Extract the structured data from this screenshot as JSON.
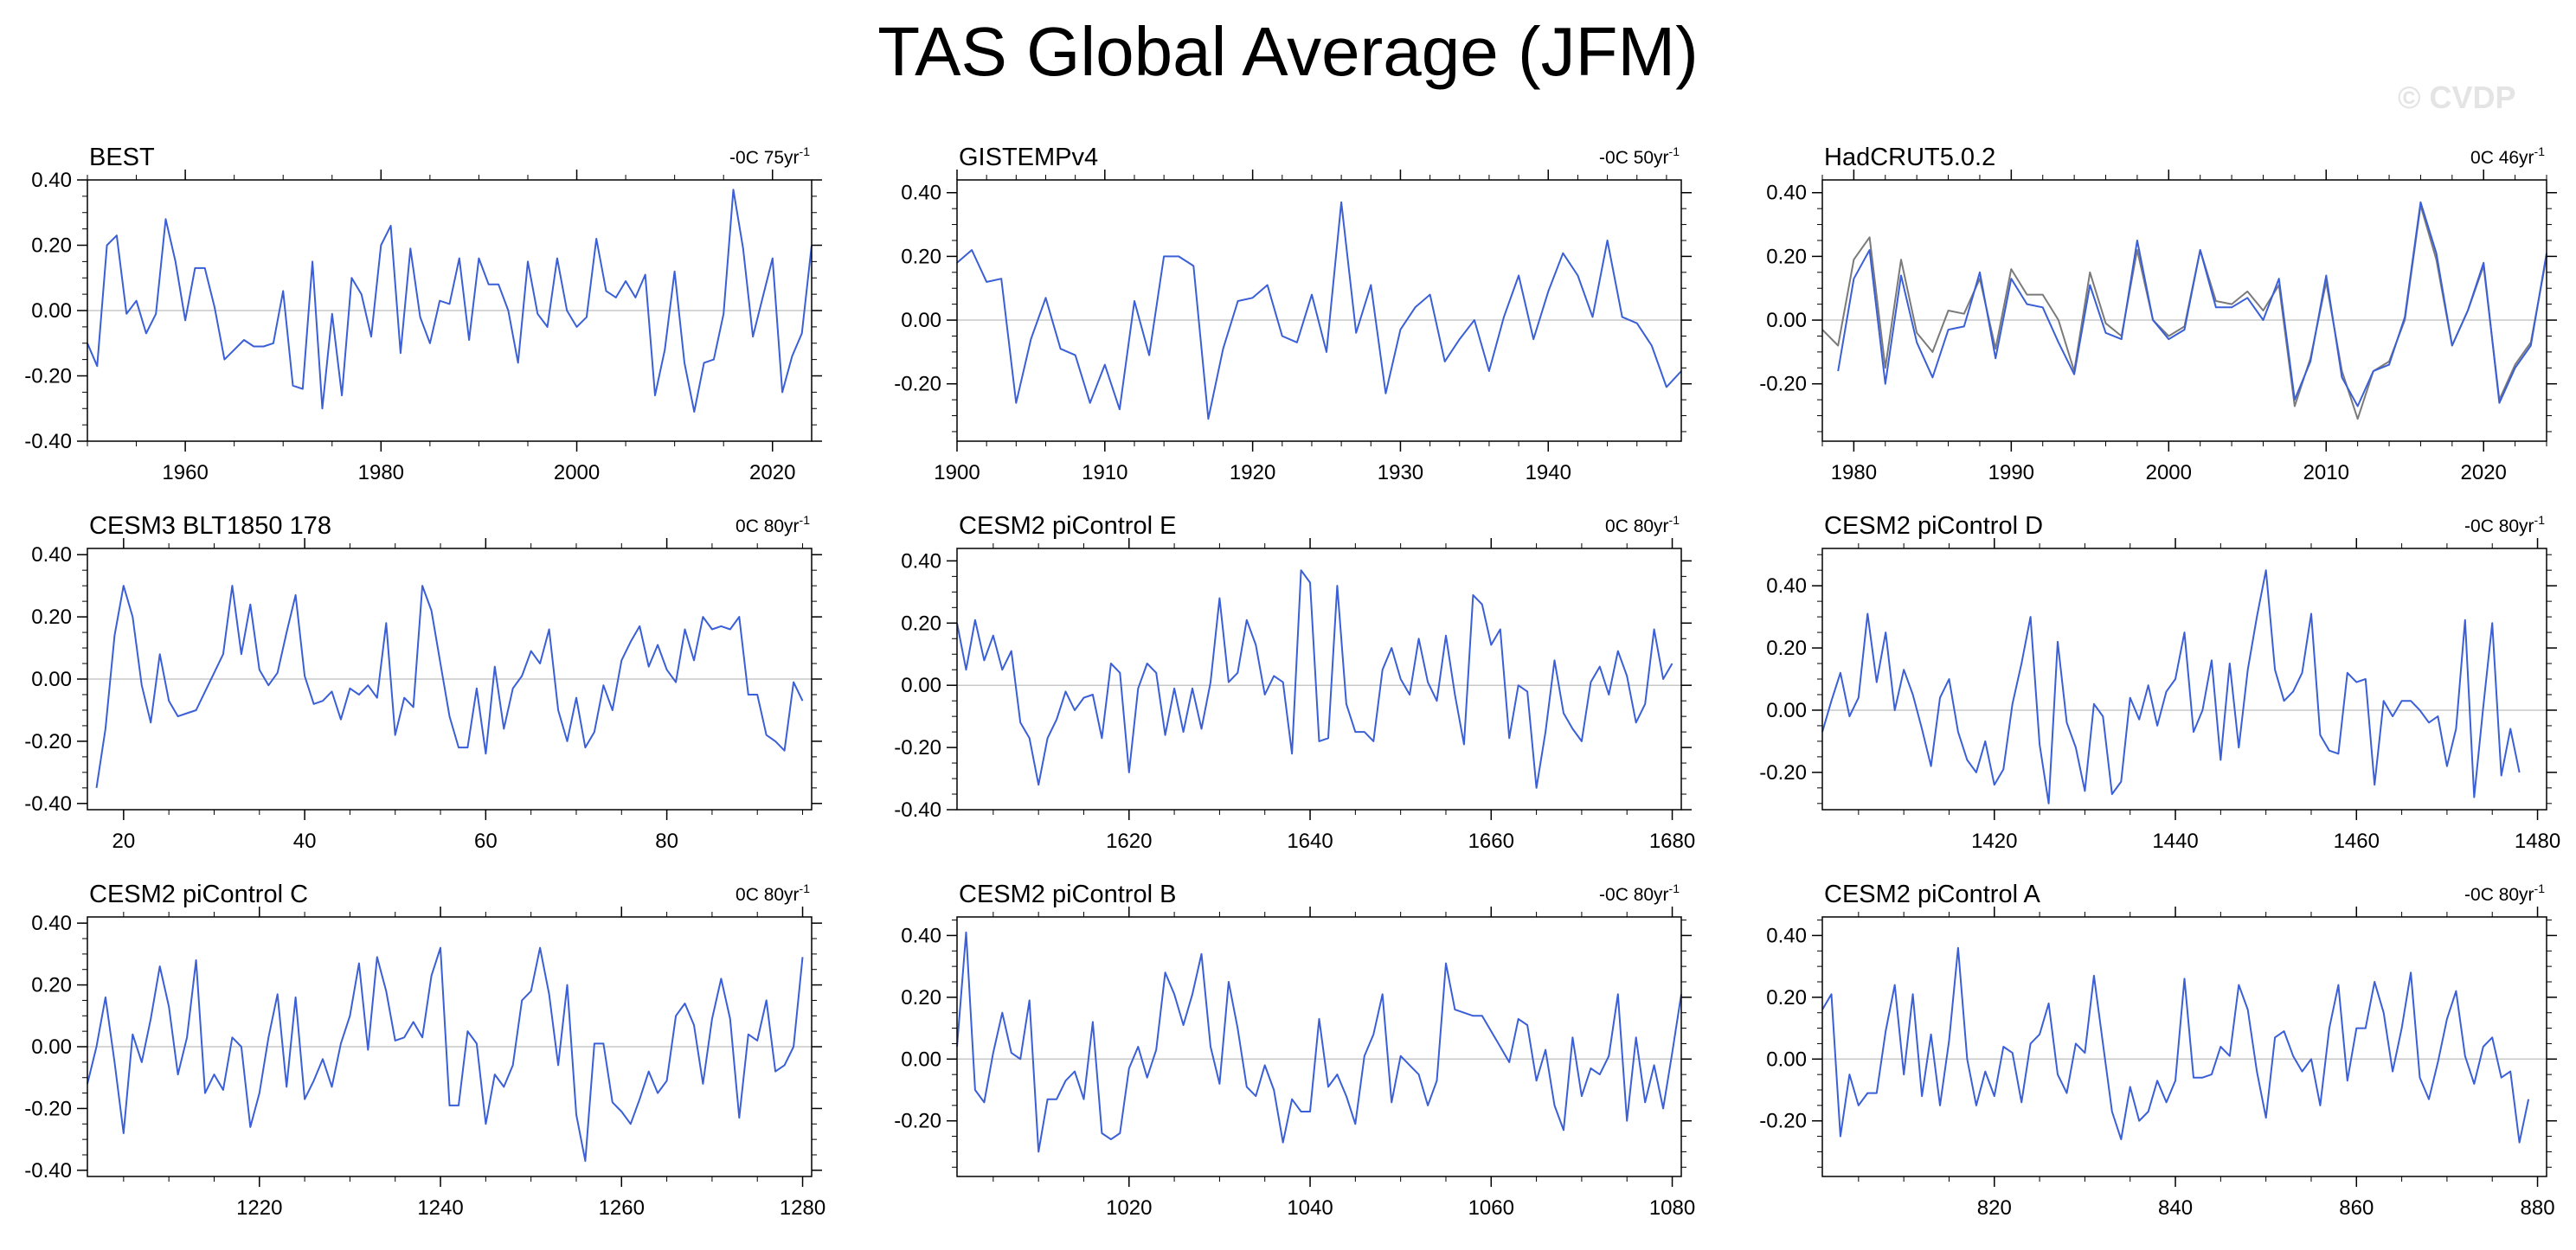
{
  "title": "TAS Global Average (JFM)",
  "watermark": "© CVDP",
  "colors": {
    "primary": "#3a5fd6",
    "secondary": "#7a7a7a",
    "zero_line": "#c8c8c8"
  },
  "chart_data": [
    {
      "type": "line",
      "title": "BEST",
      "trend_value": "-0C 75yr",
      "trend_exp": "-1",
      "xlim": [
        1950,
        2024
      ],
      "xticks": [
        1960,
        1980,
        2000,
        2020
      ],
      "ylim": [
        -0.4,
        0.4
      ],
      "yticks": [
        "0.40",
        "0.20",
        "0.00",
        "-0.20",
        "-0.40"
      ],
      "series": [
        {
          "x_start": 1950,
          "values": [
            -0.1,
            -0.17,
            0.2,
            0.23,
            -0.01,
            0.03,
            -0.07,
            -0.01,
            0.28,
            0.15,
            -0.03,
            0.13,
            0.13,
            0.01,
            -0.15,
            -0.12,
            -0.09,
            -0.11,
            -0.11,
            -0.1,
            0.06,
            -0.23,
            -0.24,
            0.15,
            -0.3,
            -0.01,
            -0.26,
            0.1,
            0.05,
            -0.08,
            0.2,
            0.26,
            -0.13,
            0.19,
            -0.02,
            -0.1,
            0.03,
            0.02,
            0.16,
            -0.09,
            0.16,
            0.08,
            0.08,
            0.0,
            -0.16,
            0.15,
            -0.01,
            -0.05,
            0.16,
            0.0,
            -0.05,
            -0.02,
            0.22,
            0.06,
            0.04,
            0.09,
            0.04,
            0.11,
            -0.26,
            -0.12,
            0.12,
            -0.16,
            -0.31,
            -0.16,
            -0.15,
            -0.01,
            0.37,
            0.19,
            -0.08,
            0.04,
            0.16,
            -0.25,
            -0.14,
            -0.07,
            0.2
          ]
        }
      ]
    },
    {
      "type": "line",
      "title": "GISTEMPv4",
      "trend_value": "-0C 50yr",
      "trend_exp": "-1",
      "xlim": [
        1900,
        1949
      ],
      "xticks": [
        1900,
        1910,
        1920,
        1930,
        1940
      ],
      "ylim": [
        -0.38,
        0.44
      ],
      "yticks": [
        "0.40",
        "0.20",
        "0.00",
        "-0.20"
      ],
      "series": [
        {
          "x_start": 1900,
          "values": [
            0.18,
            0.22,
            0.12,
            0.13,
            -0.26,
            -0.06,
            0.07,
            -0.09,
            -0.11,
            -0.26,
            -0.14,
            -0.28,
            0.06,
            -0.11,
            0.2,
            0.2,
            0.17,
            -0.31,
            -0.09,
            0.06,
            0.07,
            0.11,
            -0.05,
            -0.07,
            0.08,
            -0.1,
            0.37,
            -0.04,
            0.11,
            -0.23,
            -0.03,
            0.04,
            0.08,
            -0.13,
            -0.06,
            0.0,
            -0.16,
            0.01,
            0.14,
            -0.06,
            0.09,
            0.21,
            0.14,
            0.01,
            0.25,
            0.01,
            -0.01,
            -0.08,
            -0.21,
            -0.16
          ]
        }
      ]
    },
    {
      "type": "line",
      "title": "HadCRUT5.0.2",
      "trend_value": "0C 46yr",
      "trend_exp": "-1",
      "xlim": [
        1978,
        2024
      ],
      "xticks": [
        1980,
        1990,
        2000,
        2010,
        2020
      ],
      "ylim": [
        -0.38,
        0.44
      ],
      "yticks": [
        "0.40",
        "0.20",
        "0.00",
        "-0.20"
      ],
      "series": [
        {
          "name": "",
          "x_start": 1979,
          "values": [
            -0.16,
            0.13,
            0.22,
            -0.2,
            0.14,
            -0.07,
            -0.18,
            -0.03,
            -0.02,
            0.15,
            -0.12,
            0.13,
            0.05,
            0.04,
            -0.07,
            -0.17,
            0.11,
            -0.04,
            -0.06,
            0.25,
            0.0,
            -0.06,
            -0.03,
            0.22,
            0.04,
            0.04,
            0.07,
            0.0,
            0.13,
            -0.25,
            -0.13,
            0.14,
            -0.18,
            -0.27,
            -0.16,
            -0.14,
            0.01,
            0.37,
            0.21,
            -0.08,
            0.03,
            0.18,
            -0.26,
            -0.15,
            -0.08,
            0.21
          ]
        },
        {
          "name": "",
          "x_start": 1978,
          "values": [
            -0.03,
            -0.08,
            0.19,
            0.26,
            -0.15,
            0.19,
            -0.04,
            -0.1,
            0.03,
            0.02,
            0.13,
            -0.09,
            0.16,
            0.08,
            0.08,
            0.0,
            -0.16,
            0.15,
            -0.01,
            -0.05,
            0.22,
            0.0,
            -0.05,
            -0.02,
            0.22,
            0.06,
            0.05,
            0.09,
            0.03,
            0.11,
            -0.27,
            -0.12,
            0.12,
            -0.16,
            -0.31,
            -0.16,
            -0.13,
            0.0,
            0.36,
            0.19,
            -0.08,
            0.03,
            0.17,
            -0.25,
            -0.14,
            -0.07,
            0.2
          ]
        }
      ]
    },
    {
      "type": "line",
      "title": "CESM3 BLT1850 178",
      "trend_value": "0C 80yr",
      "trend_exp": "-1",
      "xlim": [
        16,
        96
      ],
      "xticks": [
        20,
        40,
        60,
        80
      ],
      "ylim": [
        -0.42,
        0.42
      ],
      "yticks": [
        "0.40",
        "0.20",
        "0.00",
        "-0.20",
        "-0.40"
      ],
      "series": [
        {
          "x_start": 17,
          "values": [
            -0.35,
            -0.16,
            0.14,
            0.3,
            0.2,
            -0.02,
            -0.14,
            0.08,
            -0.07,
            -0.12,
            -0.11,
            -0.1,
            -0.04,
            0.02,
            0.08,
            0.3,
            0.08,
            0.24,
            0.03,
            -0.02,
            0.02,
            0.15,
            0.27,
            0.01,
            -0.08,
            -0.07,
            -0.04,
            -0.13,
            -0.03,
            -0.05,
            -0.02,
            -0.06,
            0.18,
            -0.18,
            -0.06,
            -0.09,
            0.3,
            0.22,
            0.05,
            -0.12,
            -0.22,
            -0.22,
            -0.03,
            -0.24,
            0.04,
            -0.16,
            -0.03,
            0.01,
            0.09,
            0.05,
            0.16,
            -0.1,
            -0.2,
            -0.06,
            -0.22,
            -0.17,
            -0.02,
            -0.1,
            0.06,
            0.12,
            0.17,
            0.04,
            0.11,
            0.03,
            -0.01,
            0.16,
            0.06,
            0.2,
            0.16,
            0.17,
            0.16,
            0.2,
            -0.05,
            -0.05,
            -0.18,
            -0.2,
            -0.23,
            -0.01,
            -0.07
          ]
        }
      ]
    },
    {
      "type": "line",
      "title": "CESM2 piControl E",
      "trend_value": "0C 80yr",
      "trend_exp": "-1",
      "xlim": [
        1601,
        1681
      ],
      "xticks": [
        1620,
        1640,
        1660,
        1680
      ],
      "ylim": [
        -0.4,
        0.44
      ],
      "yticks": [
        "0.40",
        "0.20",
        "0.00",
        "-0.20",
        "-0.40"
      ],
      "series": [
        {
          "x_start": 1601,
          "values": [
            0.2,
            0.05,
            0.21,
            0.08,
            0.16,
            0.05,
            0.11,
            -0.12,
            -0.17,
            -0.32,
            -0.17,
            -0.11,
            -0.02,
            -0.08,
            -0.04,
            -0.03,
            -0.17,
            0.07,
            0.04,
            -0.28,
            -0.01,
            0.07,
            0.04,
            -0.16,
            -0.01,
            -0.15,
            -0.01,
            -0.14,
            0.01,
            0.28,
            0.01,
            0.04,
            0.21,
            0.13,
            -0.03,
            0.03,
            0.01,
            -0.22,
            0.37,
            0.33,
            -0.18,
            -0.17,
            0.32,
            -0.06,
            -0.15,
            -0.15,
            -0.18,
            0.05,
            0.12,
            0.02,
            -0.03,
            0.15,
            0.01,
            -0.05,
            0.16,
            -0.03,
            -0.19,
            0.29,
            0.26,
            0.13,
            0.18,
            -0.17,
            0.0,
            -0.02,
            -0.33,
            -0.15,
            0.08,
            -0.09,
            -0.14,
            -0.18,
            0.01,
            0.06,
            -0.03,
            0.11,
            0.03,
            -0.12,
            -0.06,
            0.18,
            0.02,
            0.07
          ]
        }
      ]
    },
    {
      "type": "line",
      "title": "CESM2 piControl D",
      "trend_value": "-0C 80yr",
      "trend_exp": "-1",
      "xlim": [
        1401,
        1481
      ],
      "xticks": [
        1420,
        1440,
        1460,
        1480
      ],
      "ylim": [
        -0.32,
        0.52
      ],
      "yticks": [
        "0.40",
        "0.20",
        "0.00",
        "-0.20"
      ],
      "series": [
        {
          "x_start": 1401,
          "values": [
            -0.07,
            0.03,
            0.12,
            -0.02,
            0.04,
            0.31,
            0.09,
            0.25,
            0.0,
            0.13,
            0.05,
            -0.06,
            -0.18,
            0.04,
            0.1,
            -0.07,
            -0.16,
            -0.2,
            -0.1,
            -0.24,
            -0.19,
            0.02,
            0.15,
            0.3,
            -0.11,
            -0.3,
            0.22,
            -0.04,
            -0.12,
            -0.26,
            0.02,
            -0.02,
            -0.27,
            -0.23,
            0.04,
            -0.03,
            0.08,
            -0.05,
            0.06,
            0.1,
            0.25,
            -0.07,
            0.0,
            0.16,
            -0.16,
            0.15,
            -0.12,
            0.13,
            0.3,
            0.45,
            0.13,
            0.03,
            0.06,
            0.12,
            0.31,
            -0.08,
            -0.13,
            -0.14,
            0.12,
            0.09,
            0.1,
            -0.24,
            0.03,
            -0.02,
            0.03,
            0.03,
            0.0,
            -0.04,
            -0.02,
            -0.18,
            -0.06,
            0.29,
            -0.28,
            0.01,
            0.28,
            -0.21,
            -0.06,
            -0.2
          ]
        }
      ]
    },
    {
      "type": "line",
      "title": "CESM2 piControl C",
      "trend_value": "0C 80yr",
      "trend_exp": "-1",
      "xlim": [
        1201,
        1281
      ],
      "xticks": [
        1220,
        1240,
        1260,
        1280
      ],
      "ylim": [
        -0.42,
        0.42
      ],
      "yticks": [
        "0.40",
        "0.20",
        "0.00",
        "-0.20",
        "-0.40"
      ],
      "series": [
        {
          "x_start": 1201,
          "values": [
            -0.12,
            0.0,
            0.16,
            -0.05,
            -0.28,
            0.04,
            -0.05,
            0.09,
            0.26,
            0.13,
            -0.09,
            0.03,
            0.28,
            -0.15,
            -0.09,
            -0.14,
            0.03,
            0.0,
            -0.26,
            -0.15,
            0.03,
            0.17,
            -0.13,
            0.16,
            -0.17,
            -0.11,
            -0.04,
            -0.13,
            0.01,
            0.1,
            0.27,
            -0.01,
            0.29,
            0.18,
            0.02,
            0.03,
            0.08,
            0.03,
            0.23,
            0.32,
            -0.19,
            -0.19,
            0.05,
            0.01,
            -0.25,
            -0.09,
            -0.13,
            -0.06,
            0.15,
            0.18,
            0.32,
            0.17,
            -0.06,
            0.2,
            -0.22,
            -0.37,
            0.01,
            0.01,
            -0.18,
            -0.21,
            -0.25,
            -0.17,
            -0.08,
            -0.15,
            -0.11,
            0.1,
            0.14,
            0.07,
            -0.12,
            0.09,
            0.22,
            0.09,
            -0.23,
            0.04,
            0.02,
            0.15,
            -0.08,
            -0.06,
            0.0,
            0.29
          ]
        }
      ]
    },
    {
      "type": "line",
      "title": "CESM2 piControl B",
      "trend_value": "-0C 80yr",
      "trend_exp": "-1",
      "xlim": [
        1001,
        1081
      ],
      "xticks": [
        1020,
        1040,
        1060,
        1080
      ],
      "ylim": [
        -0.38,
        0.46
      ],
      "yticks": [
        "0.40",
        "0.20",
        "0.00",
        "-0.20"
      ],
      "series": [
        {
          "x_start": 1001,
          "values": [
            0.04,
            0.41,
            -0.1,
            -0.14,
            0.02,
            0.15,
            0.02,
            0.0,
            0.19,
            -0.3,
            -0.13,
            -0.13,
            -0.07,
            -0.04,
            -0.13,
            0.12,
            -0.24,
            -0.26,
            -0.24,
            -0.03,
            0.04,
            -0.06,
            0.03,
            0.28,
            0.21,
            0.11,
            0.21,
            0.34,
            0.04,
            -0.08,
            0.25,
            0.1,
            -0.09,
            -0.12,
            -0.02,
            -0.1,
            -0.27,
            -0.13,
            -0.17,
            -0.17,
            0.13,
            -0.09,
            -0.05,
            -0.12,
            -0.21,
            0.01,
            0.08,
            0.21,
            -0.14,
            0.01,
            -0.02,
            -0.05,
            -0.15,
            -0.07,
            0.31,
            0.16,
            0.15,
            0.14,
            0.14,
            0.09,
            0.04,
            -0.01,
            0.13,
            0.11,
            -0.07,
            0.03,
            -0.15,
            -0.23,
            0.07,
            -0.12,
            -0.03,
            -0.05,
            0.01,
            0.21,
            -0.2,
            0.07,
            -0.14,
            -0.02,
            -0.16,
            0.02,
            0.21
          ]
        }
      ]
    },
    {
      "type": "line",
      "title": "CESM2 piControl A",
      "trend_value": "-0C 80yr",
      "trend_exp": "-1",
      "xlim": [
        801,
        881
      ],
      "xticks": [
        820,
        840,
        860,
        880
      ],
      "ylim": [
        -0.38,
        0.46
      ],
      "yticks": [
        "0.40",
        "0.20",
        "0.00",
        "-0.20"
      ],
      "series": [
        {
          "x_start": 801,
          "values": [
            0.16,
            0.21,
            -0.25,
            -0.05,
            -0.15,
            -0.11,
            -0.11,
            0.09,
            0.24,
            -0.05,
            0.21,
            -0.12,
            0.08,
            -0.15,
            0.06,
            0.36,
            0.0,
            -0.15,
            -0.04,
            -0.12,
            0.04,
            0.02,
            -0.14,
            0.05,
            0.08,
            0.18,
            -0.05,
            -0.11,
            0.05,
            0.02,
            0.27,
            0.05,
            -0.17,
            -0.26,
            -0.09,
            -0.2,
            -0.17,
            -0.07,
            -0.14,
            -0.07,
            0.26,
            -0.06,
            -0.06,
            -0.05,
            0.04,
            0.01,
            0.24,
            0.16,
            -0.04,
            -0.19,
            0.07,
            0.09,
            0.01,
            -0.04,
            0.0,
            -0.15,
            0.1,
            0.24,
            -0.07,
            0.1,
            0.1,
            0.25,
            0.15,
            -0.04,
            0.1,
            0.28,
            -0.06,
            -0.13,
            -0.01,
            0.13,
            0.22,
            0.01,
            -0.08,
            0.04,
            0.07,
            -0.06,
            -0.04,
            -0.27,
            -0.13
          ]
        }
      ]
    }
  ]
}
